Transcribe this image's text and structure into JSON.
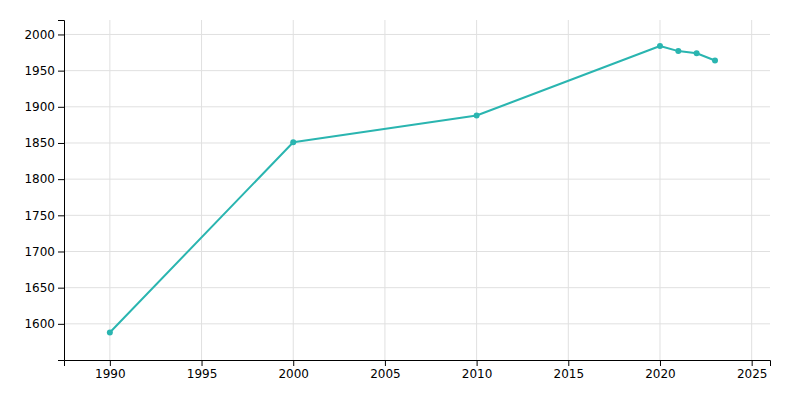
{
  "chart_data": {
    "type": "line",
    "x": [
      1990,
      2000,
      2010,
      2020,
      2021,
      2022,
      2023
    ],
    "values": [
      1588,
      1851,
      1888,
      1984,
      1977,
      1974,
      1964
    ],
    "color": "#2ab5b0",
    "marker": "circle",
    "xlim": [
      1987.5,
      2026
    ],
    "ylim": [
      1550,
      2020
    ],
    "xticks": [
      1990,
      1995,
      2000,
      2005,
      2010,
      2015,
      2020,
      2025
    ],
    "yticks": [
      1600,
      1650,
      1700,
      1750,
      1800,
      1850,
      1900,
      1950,
      2000
    ],
    "grid": true
  }
}
